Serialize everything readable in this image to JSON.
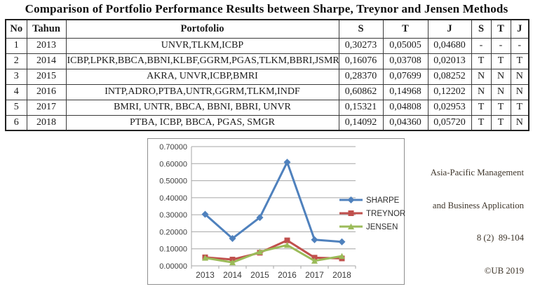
{
  "title": "Comparison of Portfolio Performance Results between Sharpe, Treynor and Jensen Methods",
  "table": {
    "headers": [
      "No",
      "Tahun",
      "Portofolio",
      "S",
      "T",
      "J",
      "S",
      "T",
      "J"
    ],
    "rows": [
      [
        "1",
        "2013",
        "UNVR,TLKM,ICBP",
        "0,30273",
        "0,05005",
        "0,04680",
        "-",
        "-",
        "-"
      ],
      [
        "2",
        "2014",
        "ICBP,LPKR,BBCA,BBNI,KLBF,GGRM,PGAS,TLKM,BBRI,JSMR",
        "0,16076",
        "0,03708",
        "0,02013",
        "T",
        "T",
        "T"
      ],
      [
        "3",
        "2015",
        "AKRA, UNVR,ICBP,BMRI",
        "0,28370",
        "0,07699",
        "0,08252",
        "N",
        "N",
        "N"
      ],
      [
        "4",
        "2016",
        "INTP,ADRO,PTBA,UNTR,GGRM,TLKM,INDF",
        "0,60862",
        "0,14968",
        "0,12202",
        "N",
        "N",
        "N"
      ],
      [
        "5",
        "2017",
        "BMRI, UNTR, BBCA, BBNI, BBRI, UNVR",
        "0,15321",
        "0,04808",
        "0,02953",
        "T",
        "T",
        "T"
      ],
      [
        "6",
        "2018",
        "PTBA, ICBP, BBCA, PGAS, SMGR",
        "0,14092",
        "0,04360",
        "0,05720",
        "T",
        "T",
        "N"
      ]
    ]
  },
  "journal_note": {
    "lines": [
      "Asia-Pacific Management",
      "and Business Application",
      "8 (2)  89-104",
      "©UB 2019"
    ]
  },
  "chart_data": {
    "type": "line",
    "title": "",
    "xlabel": "",
    "ylabel": "",
    "categories": [
      "2013",
      "2014",
      "2015",
      "2016",
      "2017",
      "2018"
    ],
    "series": [
      {
        "name": "SHARPE",
        "values": [
          0.30273,
          0.16076,
          0.2837,
          0.60862,
          0.15321,
          0.14092
        ],
        "color": "#4F81BD",
        "marker": "diamond"
      },
      {
        "name": "TREYNOR",
        "values": [
          0.05005,
          0.03708,
          0.07699,
          0.14968,
          0.04808,
          0.0436
        ],
        "color": "#C0504D",
        "marker": "square"
      },
      {
        "name": "JENSEN",
        "values": [
          0.0468,
          0.02013,
          0.08252,
          0.12202,
          0.02953,
          0.0572
        ],
        "color": "#9BBB59",
        "marker": "triangle"
      }
    ],
    "ylim": [
      0,
      0.7
    ],
    "ytick_step": 0.1,
    "ytick_decimals": 5,
    "grid": "horizontal",
    "legend_position": "right",
    "gridline_color": "#A6A6A6"
  }
}
